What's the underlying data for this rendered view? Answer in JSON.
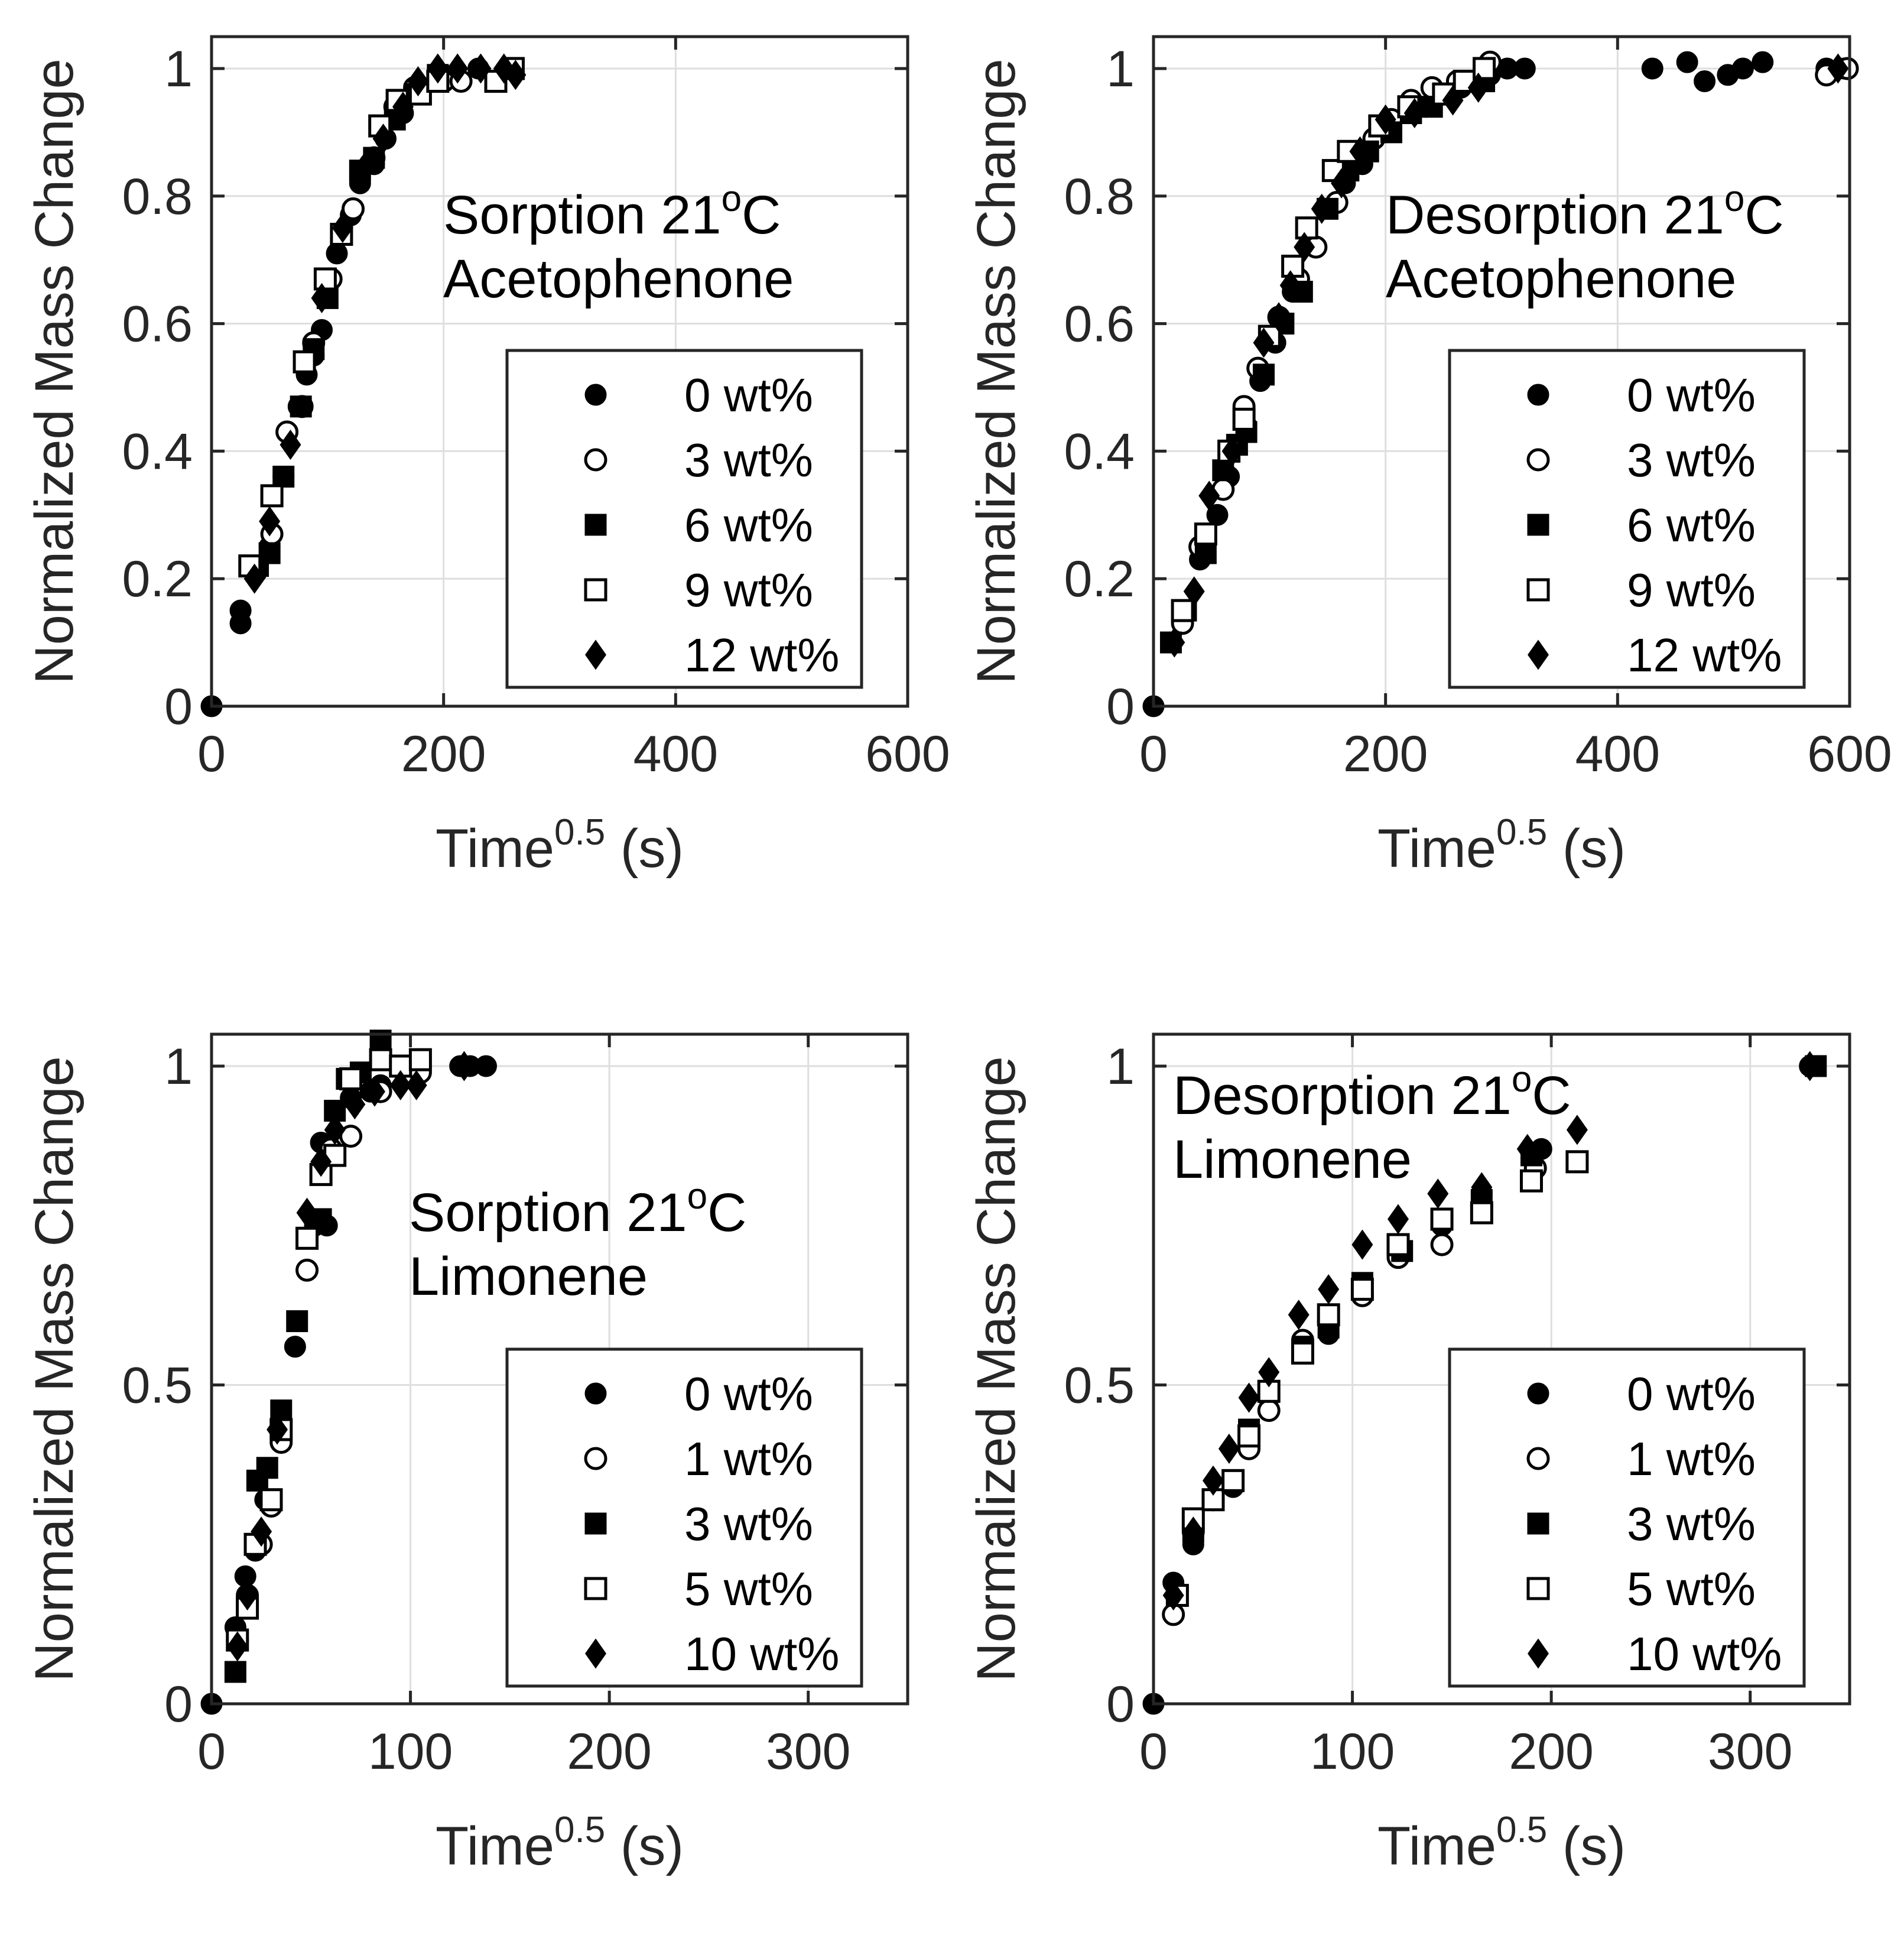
{
  "chart_data": [
    {
      "type": "scatter",
      "title": "Sorption 21°C Acetophenone",
      "annotation": {
        "line1_prefix": "Sorption 21",
        "superscript": "o",
        "line1_suffix": "C",
        "line2": "Acetophenone"
      },
      "xlabel": {
        "base": "Time",
        "superscript": "0.5",
        "suffix": " (s)"
      },
      "ylabel": "Normalized Mass Change",
      "xlim": [
        0,
        600
      ],
      "ylim": [
        0,
        1.05
      ],
      "xticks": [
        0,
        200,
        400,
        600
      ],
      "xtick_labels": [
        "0",
        "200",
        "400",
        "600"
      ],
      "yticks": [
        0,
        0.2,
        0.4,
        0.6,
        0.8,
        1
      ],
      "ytick_labels": [
        "0",
        "0.2",
        "0.4",
        "0.6",
        "0.8",
        "1"
      ],
      "grid": true,
      "legend_position": "lower-right",
      "series": [
        {
          "name": "0 wt%",
          "marker": "circle-filled",
          "x": [
            0,
            25,
            25,
            38,
            50,
            62,
            75,
            82,
            88,
            95,
            108,
            120,
            128,
            140,
            150,
            165,
            200,
            230
          ],
          "y": [
            0,
            0.15,
            0.13,
            0.21,
            0.25,
            0.36,
            0.47,
            0.52,
            0.55,
            0.59,
            0.71,
            0.77,
            0.82,
            0.85,
            0.89,
            0.93,
            0.99,
            1.0
          ]
        },
        {
          "name": "3 wt%",
          "marker": "circle-open",
          "x": [
            38,
            52,
            65,
            78,
            88,
            103,
            122,
            140,
            158,
            175,
            200,
            215
          ],
          "y": [
            0.21,
            0.27,
            0.43,
            0.47,
            0.57,
            0.67,
            0.78,
            0.86,
            0.94,
            0.97,
            0.98,
            0.98
          ]
        },
        {
          "name": "6 wt%",
          "marker": "square-filled",
          "x": [
            40,
            50,
            62,
            77,
            88,
            100,
            112,
            128,
            140,
            158,
            175,
            195
          ],
          "y": [
            0.22,
            0.24,
            0.36,
            0.47,
            0.56,
            0.64,
            0.74,
            0.84,
            0.86,
            0.92,
            0.96,
            0.99
          ]
        },
        {
          "name": "9 wt%",
          "marker": "square-open",
          "x": [
            33,
            52,
            80,
            98,
            112,
            145,
            160,
            180,
            195,
            245,
            260
          ],
          "y": [
            0.22,
            0.33,
            0.54,
            0.67,
            0.74,
            0.91,
            0.95,
            0.96,
            0.98,
            0.98,
            1.0
          ]
        },
        {
          "name": "12 wt%",
          "marker": "diamond-filled",
          "x": [
            37,
            50,
            68,
            95,
            113,
            130,
            148,
            165,
            178,
            195,
            212,
            232,
            252,
            262
          ],
          "y": [
            0.2,
            0.29,
            0.41,
            0.64,
            0.75,
            0.84,
            0.89,
            0.94,
            0.98,
            1.0,
            1.0,
            1.0,
            1.0,
            0.99
          ]
        }
      ]
    },
    {
      "type": "scatter",
      "title": "Desorption 21°C Acetophenone",
      "annotation": {
        "line1_prefix": "Desorption 21",
        "superscript": "o",
        "line1_suffix": "C",
        "line2": "Acetophenone"
      },
      "xlabel": {
        "base": "Time",
        "superscript": "0.5",
        "suffix": " (s)"
      },
      "ylabel": "Normalized Mass Change",
      "xlim": [
        0,
        600
      ],
      "ylim": [
        0,
        1.05
      ],
      "xticks": [
        0,
        200,
        400,
        600
      ],
      "xtick_labels": [
        "0",
        "200",
        "400",
        "600"
      ],
      "yticks": [
        0,
        0.2,
        0.4,
        0.6,
        0.8,
        1
      ],
      "ytick_labels": [
        "0",
        "0.2",
        "0.4",
        "0.6",
        "0.8",
        "1"
      ],
      "grid": true,
      "legend_position": "lower-right",
      "series": [
        {
          "name": "0 wt%",
          "marker": "circle-filled",
          "x": [
            0,
            15,
            25,
            40,
            55,
            65,
            80,
            92,
            105,
            120,
            140,
            165,
            180,
            200,
            235,
            265,
            290,
            305,
            320,
            430,
            460,
            475,
            495,
            508,
            525,
            580,
            595
          ],
          "y": [
            0,
            0.1,
            0.13,
            0.23,
            0.3,
            0.36,
            0.44,
            0.51,
            0.57,
            0.65,
            0.72,
            0.82,
            0.85,
            0.9,
            0.94,
            0.97,
            0.99,
            1.0,
            1.0,
            1.0,
            1.01,
            0.98,
            0.99,
            1.0,
            1.01,
            1.0,
            1.0
          ]
        },
        {
          "name": "3 wt%",
          "marker": "circle-open",
          "x": [
            25,
            40,
            60,
            78,
            90,
            108,
            125,
            140,
            158,
            172,
            190,
            205,
            222,
            240,
            262,
            290,
            580,
            598
          ],
          "y": [
            0.13,
            0.25,
            0.34,
            0.47,
            0.53,
            0.61,
            0.67,
            0.72,
            0.79,
            0.86,
            0.89,
            0.92,
            0.95,
            0.97,
            0.98,
            1.01,
            0.99,
            1.0
          ]
        },
        {
          "name": "6 wt%",
          "marker": "square-filled",
          "x": [
            15,
            28,
            45,
            60,
            72,
            80,
            95,
            112,
            128,
            150,
            168,
            185,
            205,
            222,
            240,
            285
          ],
          "y": [
            0.1,
            0.15,
            0.24,
            0.37,
            0.41,
            0.43,
            0.52,
            0.6,
            0.65,
            0.78,
            0.84,
            0.87,
            0.9,
            0.93,
            0.94,
            0.98
          ]
        },
        {
          "name": "9 wt%",
          "marker": "square-open",
          "x": [
            25,
            45,
            65,
            78,
            100,
            120,
            132,
            155,
            168,
            195,
            220,
            250,
            268,
            285
          ],
          "y": [
            0.15,
            0.27,
            0.4,
            0.45,
            0.58,
            0.69,
            0.75,
            0.84,
            0.87,
            0.91,
            0.94,
            0.96,
            0.98,
            1.0
          ]
        },
        {
          "name": "12 wt%",
          "marker": "diamond-filled",
          "x": [
            18,
            35,
            48,
            68,
            95,
            108,
            118,
            130,
            145,
            162,
            178,
            200,
            225,
            258,
            280,
            590
          ],
          "y": [
            0.1,
            0.18,
            0.33,
            0.4,
            0.57,
            0.61,
            0.66,
            0.72,
            0.78,
            0.82,
            0.87,
            0.92,
            0.93,
            0.95,
            0.97,
            1.0
          ]
        }
      ]
    },
    {
      "type": "scatter",
      "title": "Sorption 21°C Limonene",
      "annotation": {
        "line1_prefix": "Sorption 21",
        "superscript": "o",
        "line1_suffix": "C",
        "line2": "Limonene"
      },
      "xlabel": {
        "base": "Time",
        "superscript": "0.5",
        "suffix": " (s)"
      },
      "ylabel": "Normalized Mass Change",
      "xlim": [
        0,
        350
      ],
      "ylim": [
        0,
        1.05
      ],
      "xticks": [
        0,
        100,
        200,
        300
      ],
      "xtick_labels": [
        "0",
        "100",
        "200",
        "300"
      ],
      "yticks": [
        0,
        0.5,
        1
      ],
      "ytick_labels": [
        "0",
        "0.5",
        "1"
      ],
      "grid": true,
      "legend_position": "lower-right",
      "series": [
        {
          "name": "0 wt%",
          "marker": "circle-filled",
          "x": [
            0,
            12,
            17,
            22,
            27,
            35,
            42,
            52,
            55,
            58,
            70,
            80,
            85,
            125,
            130,
            138
          ],
          "y": [
            0,
            0.12,
            0.2,
            0.24,
            0.32,
            0.43,
            0.56,
            0.75,
            0.88,
            0.75,
            0.95,
            0.96,
            0.97,
            1.0,
            1.0,
            1.0
          ]
        },
        {
          "name": "1 wt%",
          "marker": "circle-open",
          "x": [
            13,
            18,
            25,
            30,
            35,
            48,
            60,
            70,
            85,
            105
          ],
          "y": [
            0.1,
            0.17,
            0.25,
            0.31,
            0.41,
            0.68,
            0.87,
            0.89,
            0.96,
            0.99
          ]
        },
        {
          "name": "3 wt%",
          "marker": "square-filled",
          "x": [
            12,
            23,
            28,
            35,
            43,
            55,
            62,
            68,
            75,
            85
          ],
          "y": [
            0.05,
            0.35,
            0.37,
            0.46,
            0.6,
            0.76,
            0.93,
            0.98,
            0.99,
            1.04
          ]
        },
        {
          "name": "5 wt%",
          "marker": "square-open",
          "x": [
            13,
            18,
            22,
            30,
            35,
            48,
            55,
            62,
            70,
            85,
            95,
            105
          ],
          "y": [
            0.1,
            0.15,
            0.25,
            0.32,
            0.43,
            0.73,
            0.83,
            0.86,
            0.98,
            1.01,
            1.0,
            1.01
          ]
        },
        {
          "name": "10 wt%",
          "marker": "diamond-filled",
          "x": [
            13,
            18,
            25,
            33,
            48,
            55,
            62,
            72,
            82,
            95,
            103,
            127
          ],
          "y": [
            0.09,
            0.17,
            0.27,
            0.43,
            0.77,
            0.85,
            0.9,
            0.94,
            0.96,
            0.97,
            0.97,
            1.0
          ]
        }
      ]
    },
    {
      "type": "scatter",
      "title": "Desorption 21°C Limonene",
      "annotation": {
        "line1_prefix": "Desorption 21",
        "superscript": "o",
        "line1_suffix": "C",
        "line2": "Limonene"
      },
      "xlabel": {
        "base": "Time",
        "superscript": "0.5",
        "suffix": " (s)"
      },
      "ylabel": "Normalized Mass Change",
      "xlim": [
        0,
        350
      ],
      "ylim": [
        0,
        1.05
      ],
      "xticks": [
        0,
        100,
        200,
        300
      ],
      "xtick_labels": [
        "0",
        "100",
        "200",
        "300"
      ],
      "yticks": [
        0,
        0.5,
        1
      ],
      "ytick_labels": [
        "0",
        "0.5",
        "1"
      ],
      "grid": true,
      "legend_position": "lower-right",
      "series": [
        {
          "name": "0 wt%",
          "marker": "circle-filled",
          "x": [
            0,
            10,
            20,
            40,
            48,
            58,
            75,
            88,
            105,
            123,
            145,
            165,
            190,
            195,
            330
          ],
          "y": [
            0,
            0.19,
            0.25,
            0.34,
            0.42,
            0.48,
            0.57,
            0.58,
            0.65,
            0.7,
            0.75,
            0.8,
            0.86,
            0.87,
            1.0
          ]
        },
        {
          "name": "1 wt%",
          "marker": "circle-open",
          "x": [
            10,
            20,
            30,
            48,
            58,
            75,
            88,
            105,
            123,
            145,
            165,
            192
          ],
          "y": [
            0.14,
            0.27,
            0.32,
            0.4,
            0.46,
            0.57,
            0.6,
            0.64,
            0.7,
            0.72,
            0.78,
            0.84
          ]
        },
        {
          "name": "3 wt%",
          "marker": "square-filled",
          "x": [
            12,
            20,
            30,
            40,
            48,
            58,
            75,
            88,
            105,
            125,
            145,
            165,
            190,
            333
          ],
          "y": [
            0.17,
            0.27,
            0.32,
            0.35,
            0.43,
            0.49,
            0.56,
            0.59,
            0.66,
            0.71,
            0.76,
            0.79,
            0.86,
            1.0
          ]
        },
        {
          "name": "5 wt%",
          "marker": "square-open",
          "x": [
            12,
            20,
            30,
            40,
            48,
            58,
            75,
            88,
            105,
            123,
            145,
            165,
            190,
            213
          ],
          "y": [
            0.17,
            0.29,
            0.32,
            0.35,
            0.42,
            0.49,
            0.55,
            0.61,
            0.65,
            0.72,
            0.76,
            0.77,
            0.82,
            0.85
          ]
        },
        {
          "name": "10 wt%",
          "marker": "diamond-filled",
          "x": [
            10,
            20,
            30,
            38,
            48,
            58,
            73,
            88,
            105,
            123,
            143,
            165,
            188,
            213,
            330
          ],
          "y": [
            0.17,
            0.27,
            0.35,
            0.4,
            0.48,
            0.52,
            0.61,
            0.65,
            0.72,
            0.76,
            0.8,
            0.81,
            0.87,
            0.9,
            1.0
          ]
        }
      ]
    }
  ]
}
